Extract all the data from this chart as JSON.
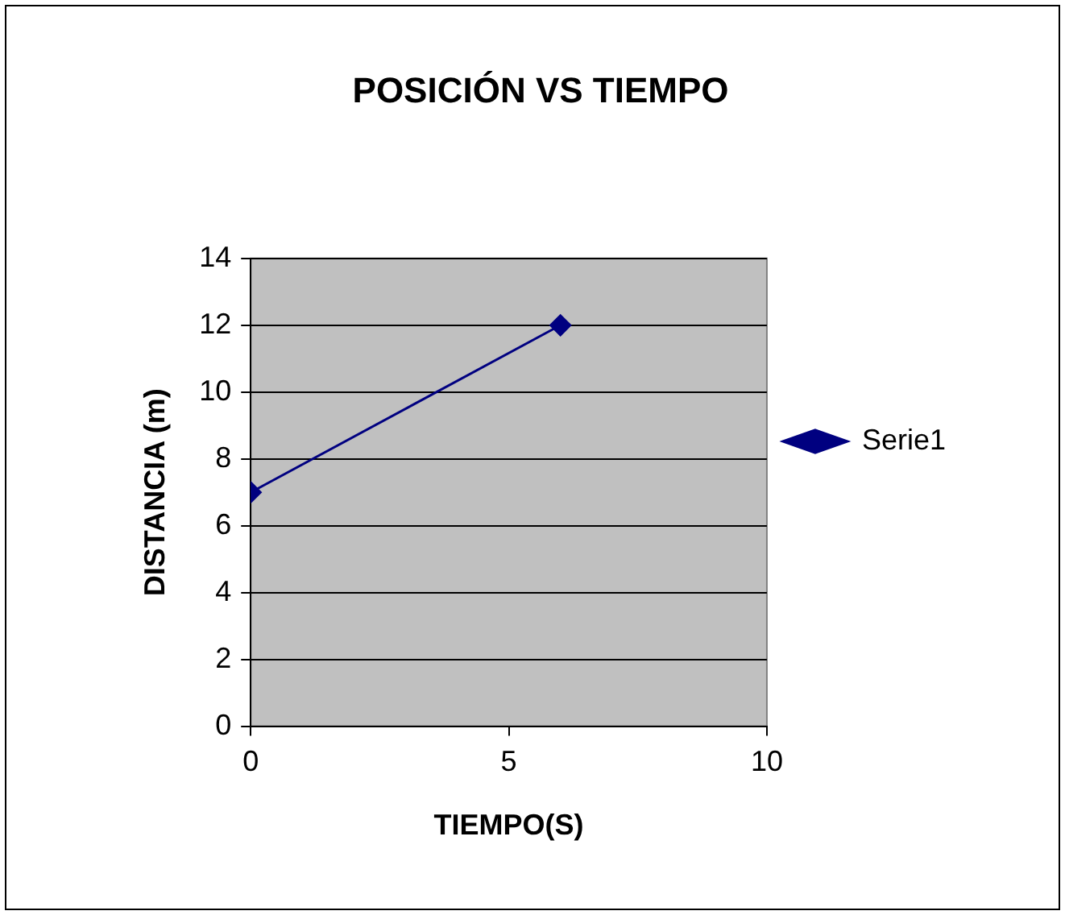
{
  "chart_data": {
    "type": "line",
    "title": "POSICIÓN VS TIEMPO",
    "xlabel": "TIEMPO(S)",
    "ylabel": "DISTANCIA (m)",
    "x": [
      0,
      6
    ],
    "series": [
      {
        "name": "Serie1",
        "color": "#000080",
        "values": [
          7,
          12
        ]
      }
    ],
    "xlim": [
      0,
      10
    ],
    "xticks": [
      0,
      5,
      10
    ],
    "ylim": [
      0,
      14
    ],
    "yticks": [
      0,
      2,
      4,
      6,
      8,
      10,
      12,
      14
    ],
    "grid": "y",
    "legend": "right",
    "marker": "diamond"
  }
}
